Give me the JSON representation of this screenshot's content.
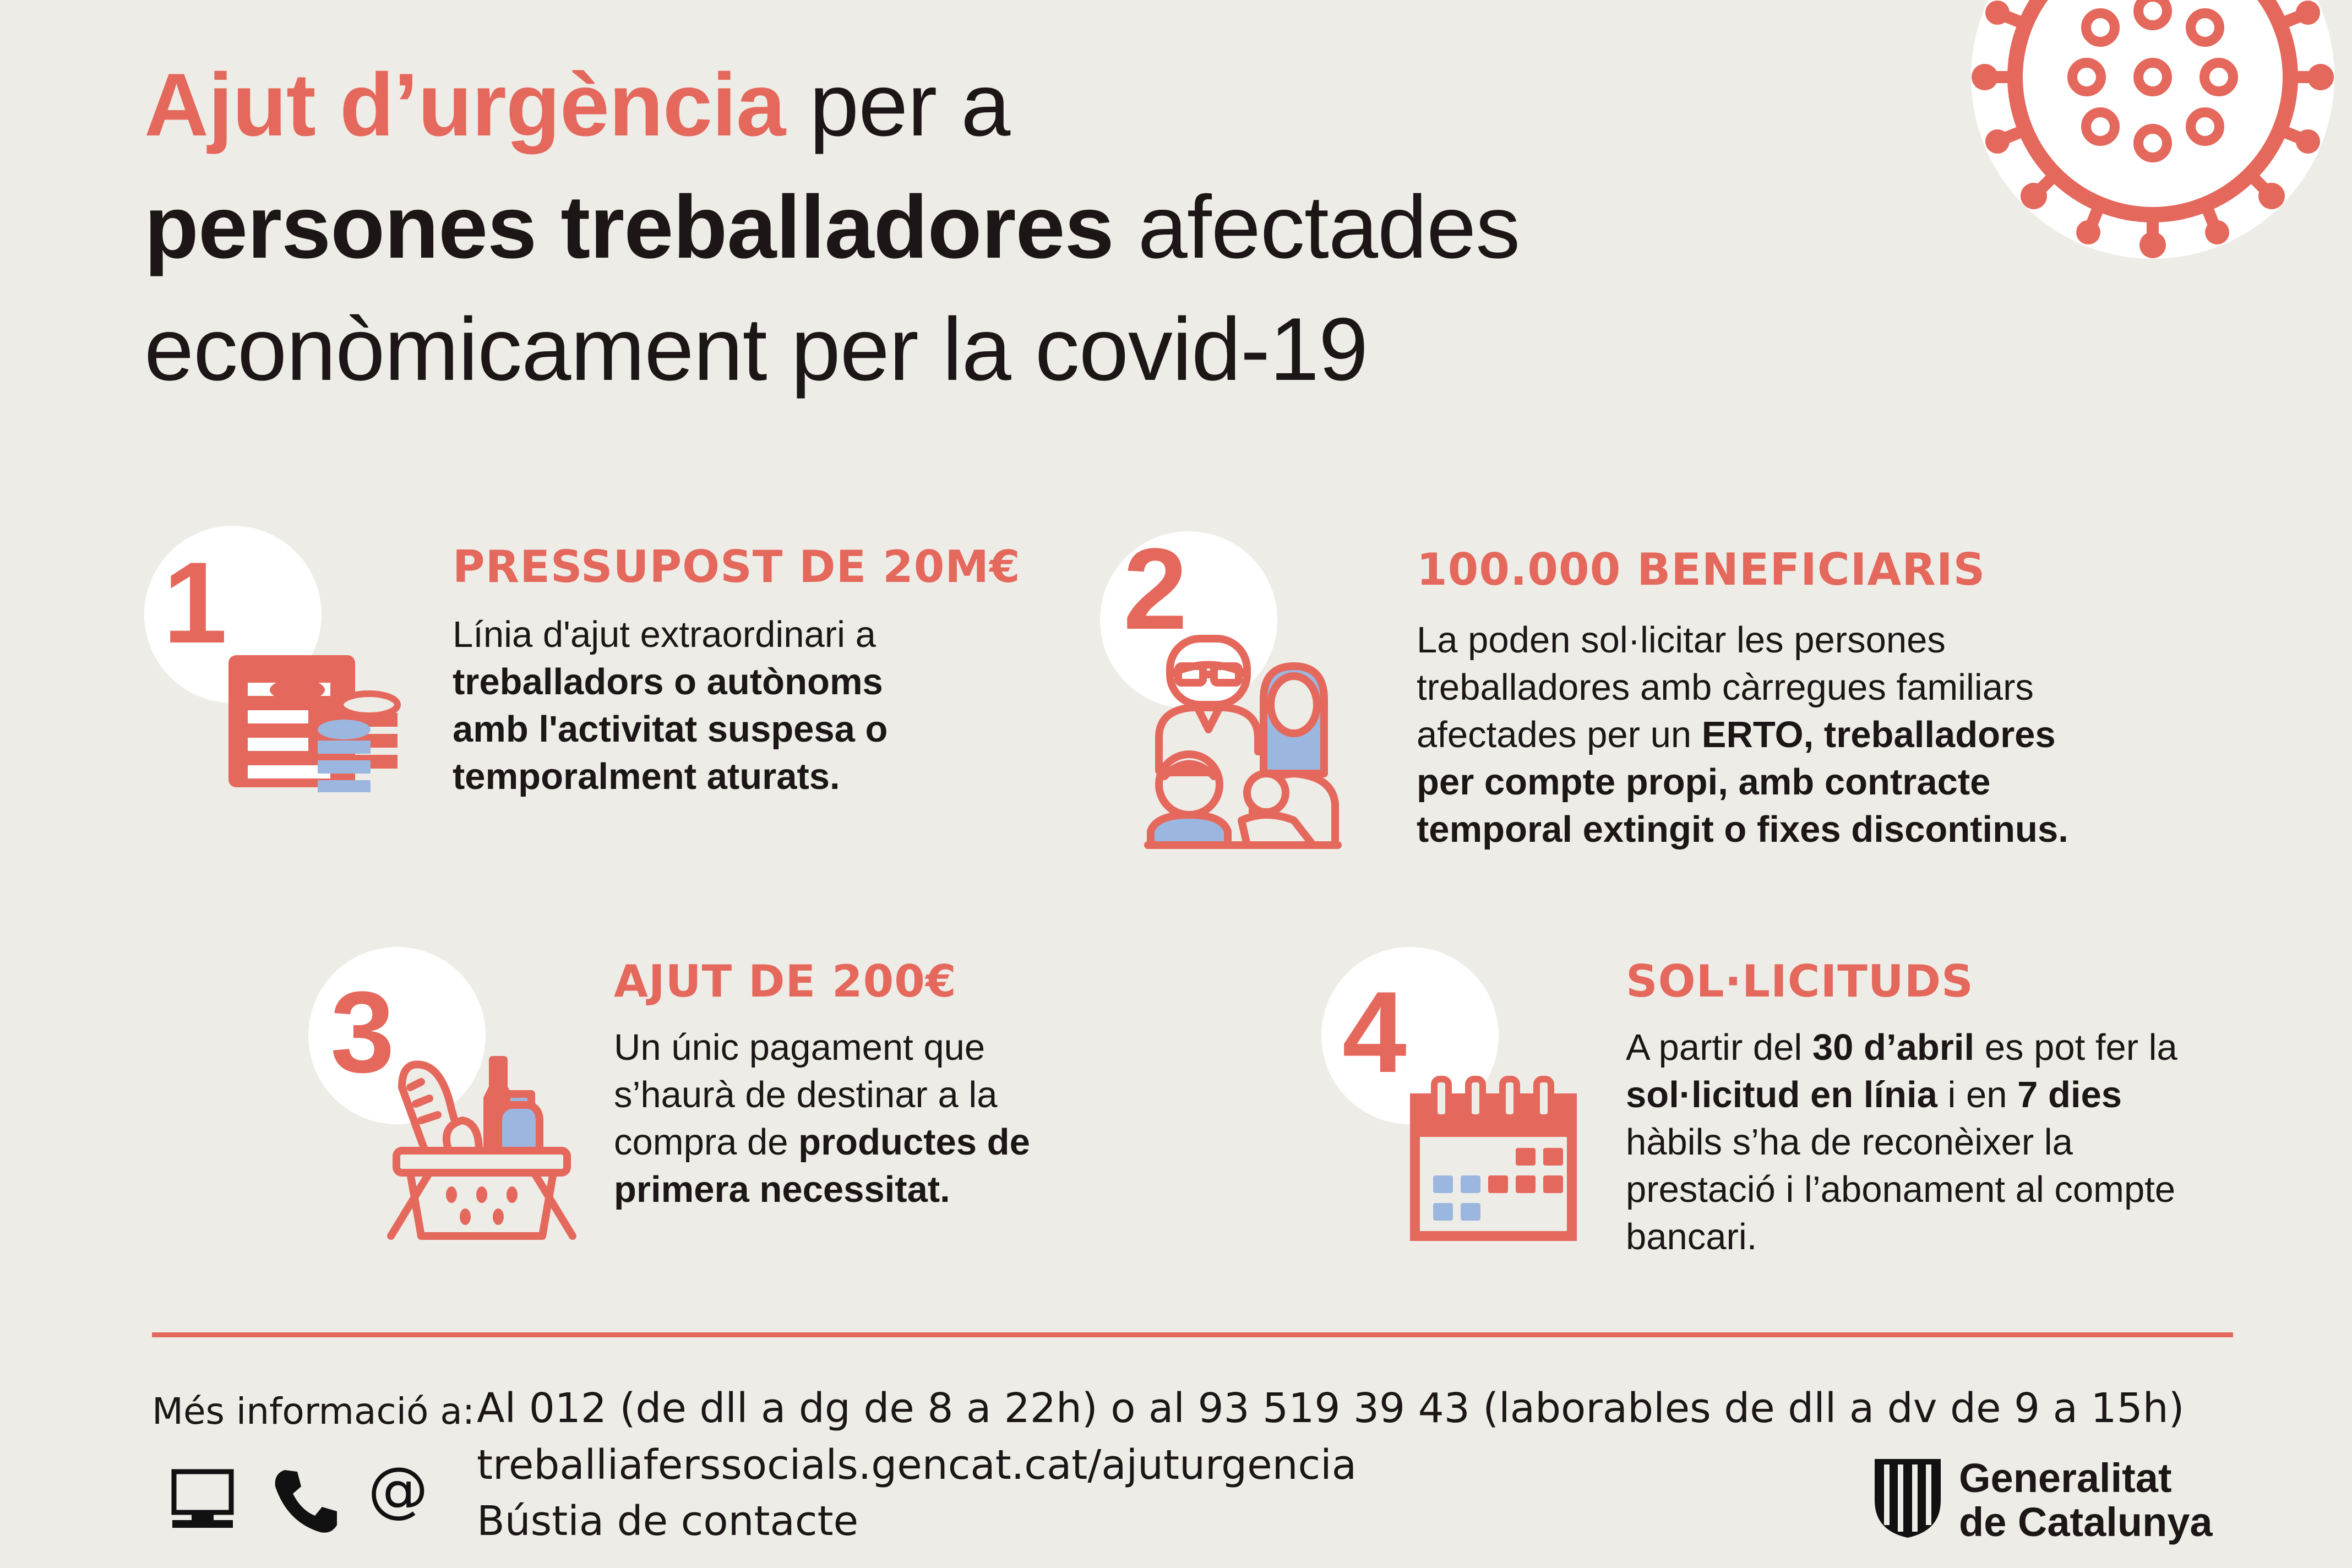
{
  "title": {
    "line1_highlight": "Ajut d’urgència",
    "line1_rest": " per a",
    "line2_bold": "persones treballadores",
    "line2_rest": " afectades",
    "line3": "econòmicament per la covid-19"
  },
  "sections": [
    {
      "number": "1",
      "heading": "PRESSUPOST DE 20M€",
      "icon": "money-stack-icon",
      "lines": [
        {
          "normal": "Línia d'ajut extraordinari a"
        },
        {
          "bold": "treballadors o autònoms"
        },
        {
          "bold": "amb l'activitat suspesa o"
        },
        {
          "bold": "temporalment aturats."
        }
      ]
    },
    {
      "number": "2",
      "heading": "100.000 BENEFICIARIS",
      "icon": "family-icon",
      "lines": [
        {
          "normal": "La poden sol·licitar les persones"
        },
        {
          "normal": "treballadores amb càrregues familiars"
        },
        {
          "normal": "afectades per un ",
          "bold": "ERTO, treballadores"
        },
        {
          "bold": "per compte propi, amb contracte"
        },
        {
          "bold": "temporal extingit o fixes discontinus."
        }
      ]
    },
    {
      "number": "3",
      "heading": "AJUT DE 200€",
      "icon": "shopping-basket-icon",
      "lines": [
        {
          "normal": "Un únic pagament que"
        },
        {
          "normal": "s’haurà de destinar a la"
        },
        {
          "normal": "compra de ",
          "bold": "productes de"
        },
        {
          "bold": "primera necessitat."
        }
      ]
    },
    {
      "number": "4",
      "heading": "SOL·LICITUDS",
      "icon": "calendar-icon",
      "lines": [
        {
          "normal": "A partir del ",
          "bold": "30 d’abril",
          "normal2": " es pot fer la"
        },
        {
          "bold": "sol·licitud en línia",
          "normal": " i en ",
          "bold2": "7 dies"
        },
        {
          "normal": "hàbils s’ha de reconèixer la"
        },
        {
          "normal": "prestació i l’abonament al compte"
        },
        {
          "normal": "bancari."
        }
      ]
    }
  ],
  "footer": {
    "more_label": "Més informació a:",
    "phone_info": "Al 012 (de dll a dg de 8 a 22h) o al 93 519 39 43 (laborables de dll a dv de 9 a 15h)",
    "website": "treballiaferssocials.gencat.cat/ajuturgencia",
    "contact": "Bústia de contacte",
    "icons": [
      "computer-icon",
      "phone-icon",
      "at-icon"
    ],
    "at_glyph": "@",
    "logo_line1": "Generalitat",
    "logo_line2": "de Catalunya"
  },
  "colors": {
    "accent": "#e5685c",
    "blue": "#9bb7e0",
    "background": "#eeece7",
    "text": "#1c1716"
  }
}
